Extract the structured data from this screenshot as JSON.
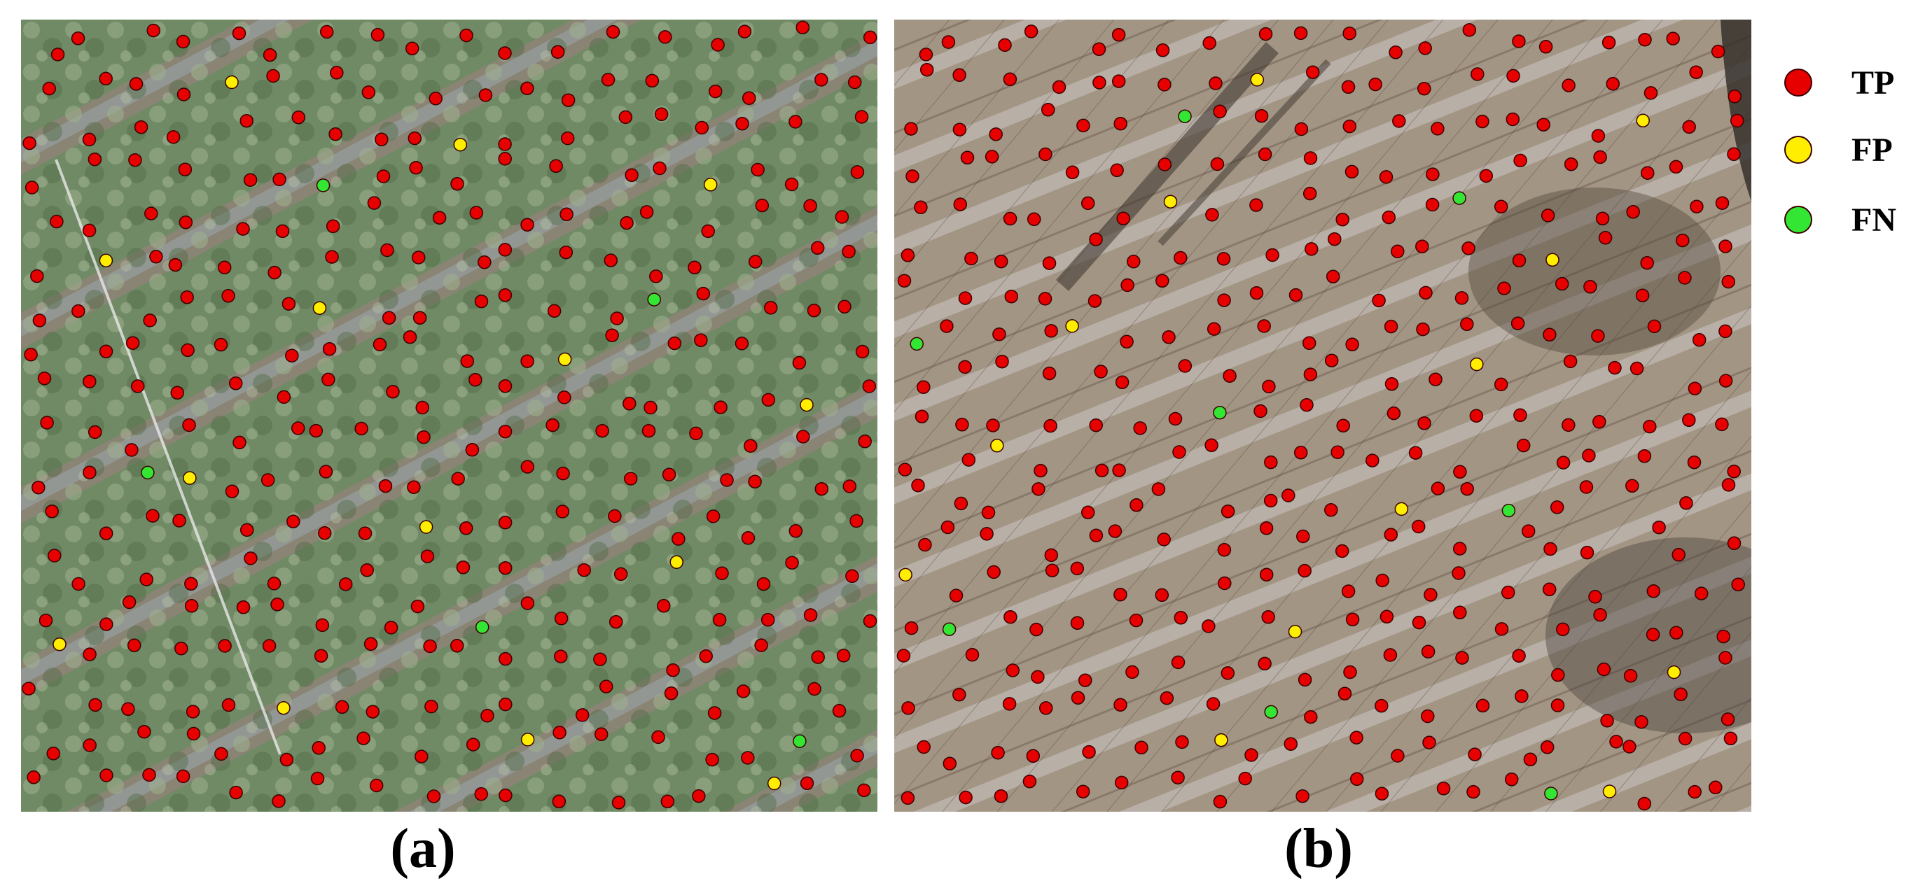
{
  "panels": [
    {
      "id": "a",
      "caption": "(a)"
    },
    {
      "id": "b",
      "caption": "(b)"
    }
  ],
  "legend": [
    {
      "label": "TP",
      "color": "#e60000"
    },
    {
      "label": "FP",
      "color": "#ffee00"
    },
    {
      "label": "FN",
      "color": "#33e633"
    }
  ]
}
